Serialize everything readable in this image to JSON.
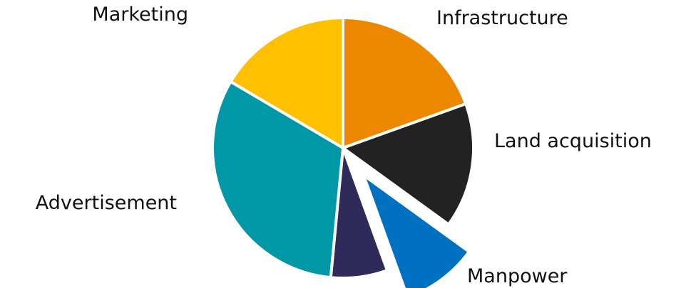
{
  "chart_data": {
    "type": "pie",
    "title": "",
    "slices": [
      {
        "label": "Infrastructure",
        "value": 19.5,
        "color": "#ee8700",
        "exploded": false
      },
      {
        "label": "Land acquisition",
        "value": 15.5,
        "color": "#222222",
        "exploded": false
      },
      {
        "label": "Manpower",
        "value": 9.5,
        "color": "#0070c0",
        "exploded": true
      },
      {
        "label": "",
        "value": 7,
        "color": "#2e2a5a",
        "exploded": false
      },
      {
        "label": "Advertisement",
        "value": 32,
        "color": "#0097a7",
        "exploded": false
      },
      {
        "label": "Marketing",
        "value": 16.5,
        "color": "#ffc000",
        "exploded": false
      }
    ],
    "start_angle_deg": 0,
    "direction": "clockwise",
    "legend": "none"
  }
}
